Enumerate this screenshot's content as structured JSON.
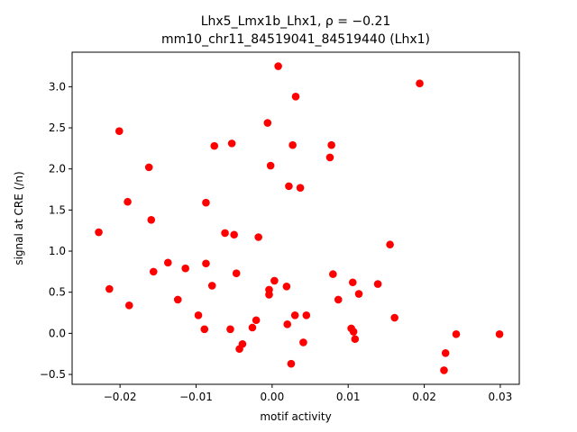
{
  "chart_data": {
    "type": "scatter",
    "title": "Lhx5_Lmx1b_Lhx1, ρ = −0.21",
    "subtitle": "mm10_chr11_84519041_84519440 (Lhx1)",
    "xlabel": "motif activity",
    "ylabel": "signal at CRE (/n)",
    "xlim": [
      -0.0263,
      0.0325
    ],
    "ylim": [
      -0.62,
      3.42
    ],
    "xticks": [
      -0.02,
      -0.01,
      0.0,
      0.01,
      0.02,
      0.03
    ],
    "xtick_labels": [
      "−0.02",
      "−0.01",
      "0.00",
      "0.01",
      "0.02",
      "0.03"
    ],
    "yticks": [
      -0.5,
      0.0,
      0.5,
      1.0,
      1.5,
      2.0,
      2.5,
      3.0
    ],
    "ytick_labels": [
      "−0.5",
      "0.0",
      "0.5",
      "1.0",
      "1.5",
      "2.0",
      "2.5",
      "3.0"
    ],
    "grid": false,
    "marker_color": "#ff0000",
    "series": [
      {
        "points": [
          [
            -0.0228,
            1.23
          ],
          [
            -0.0214,
            0.54
          ],
          [
            -0.0201,
            2.46
          ],
          [
            -0.019,
            1.6
          ],
          [
            -0.0188,
            0.34
          ],
          [
            -0.0162,
            2.02
          ],
          [
            -0.0159,
            1.38
          ],
          [
            -0.0156,
            0.75
          ],
          [
            -0.0137,
            0.86
          ],
          [
            -0.0124,
            0.41
          ],
          [
            -0.0114,
            0.79
          ],
          [
            -0.0097,
            0.22
          ],
          [
            -0.0089,
            0.05
          ],
          [
            -0.0087,
            1.59
          ],
          [
            -0.0087,
            0.85
          ],
          [
            -0.0079,
            0.58
          ],
          [
            -0.0076,
            2.28
          ],
          [
            -0.0062,
            1.22
          ],
          [
            -0.0055,
            0.05
          ],
          [
            -0.0053,
            2.31
          ],
          [
            -0.005,
            1.2
          ],
          [
            -0.0047,
            0.73
          ],
          [
            -0.0043,
            -0.19
          ],
          [
            -0.0039,
            -0.13
          ],
          [
            -0.0026,
            0.07
          ],
          [
            -0.0021,
            0.16
          ],
          [
            -0.0018,
            1.17
          ],
          [
            -0.0006,
            2.56
          ],
          [
            -0.0004,
            0.53
          ],
          [
            -0.0004,
            0.47
          ],
          [
            -0.0002,
            2.04
          ],
          [
            0.0003,
            0.64
          ],
          [
            0.0008,
            3.25
          ],
          [
            0.0019,
            0.57
          ],
          [
            0.002,
            0.11
          ],
          [
            0.0022,
            1.79
          ],
          [
            0.0025,
            -0.37
          ],
          [
            0.0027,
            2.29
          ],
          [
            0.003,
            0.22
          ],
          [
            0.0031,
            2.88
          ],
          [
            0.0037,
            1.77
          ],
          [
            0.0041,
            -0.11
          ],
          [
            0.0045,
            0.22
          ],
          [
            0.0076,
            2.14
          ],
          [
            0.0078,
            2.29
          ],
          [
            0.008,
            0.72
          ],
          [
            0.0087,
            0.41
          ],
          [
            0.0104,
            0.06
          ],
          [
            0.0106,
            0.62
          ],
          [
            0.0107,
            0.02
          ],
          [
            0.0109,
            -0.07
          ],
          [
            0.0114,
            0.48
          ],
          [
            0.0139,
            0.6
          ],
          [
            0.0155,
            1.08
          ],
          [
            0.0161,
            0.19
          ],
          [
            0.0194,
            3.04
          ],
          [
            0.0226,
            -0.45
          ],
          [
            0.0228,
            -0.24
          ],
          [
            0.0242,
            -0.01
          ],
          [
            0.0299,
            -0.01
          ]
        ]
      }
    ]
  }
}
